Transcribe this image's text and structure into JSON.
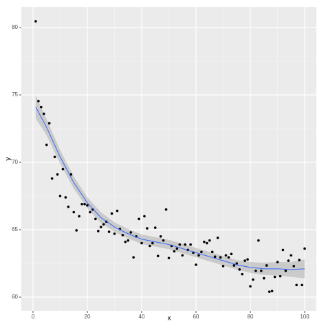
{
  "chart_data": {
    "type": "scatter",
    "x_label": "x",
    "y_label": "y",
    "x": [
      1,
      2,
      3,
      4,
      5,
      6,
      7,
      8,
      9,
      10,
      11,
      12,
      13,
      14,
      15,
      16,
      17,
      18,
      19,
      20,
      21,
      22,
      23,
      24,
      25,
      26,
      27,
      28,
      29,
      30,
      31,
      32,
      33,
      34,
      35,
      36,
      37,
      38,
      39,
      40,
      41,
      42,
      43,
      44,
      45,
      46,
      47,
      48,
      49,
      50,
      51,
      52,
      53,
      54,
      55,
      56,
      57,
      58,
      59,
      60,
      61,
      62,
      63,
      64,
      65,
      66,
      67,
      68,
      69,
      70,
      71,
      72,
      73,
      74,
      75,
      76,
      77,
      78,
      79,
      80,
      81,
      82,
      83,
      84,
      85,
      86,
      87,
      88,
      89,
      90,
      91,
      92,
      93,
      94,
      95,
      96,
      97,
      98,
      99,
      100
    ],
    "values": [
      80.46,
      74.54,
      74.1,
      73.6,
      71.3,
      72.9,
      68.8,
      70.4,
      69.1,
      67.5,
      69.5,
      67.4,
      66.7,
      69.1,
      66.3,
      64.95,
      66.0,
      66.9,
      66.9,
      66.8,
      66.3,
      66.5,
      65.8,
      64.9,
      65.2,
      65.4,
      65.6,
      64.85,
      66.2,
      64.7,
      66.4,
      65.05,
      64.6,
      64.1,
      64.2,
      64.8,
      62.95,
      64.5,
      65.8,
      64.0,
      66.0,
      65.1,
      63.8,
      64.0,
      65.15,
      63.05,
      64.5,
      64.2,
      66.5,
      62.9,
      63.8,
      63.4,
      63.6,
      63.9,
      63.1,
      63.9,
      63.5,
      63.9,
      63.3,
      62.4,
      63.1,
      63.35,
      64.1,
      64.0,
      64.2,
      63.35,
      63.0,
      64.4,
      62.95,
      62.3,
      63.1,
      62.95,
      63.2,
      62.35,
      62.5,
      62.05,
      61.7,
      62.7,
      62.8,
      60.8,
      61.3,
      61.95,
      64.2,
      61.95,
      61.4,
      62.35,
      60.4,
      60.45,
      61.5,
      62.6,
      61.55,
      63.5,
      61.95,
      62.7,
      63.1,
      62.3,
      60.9,
      62.75,
      60.9,
      63.6
    ],
    "color": "#000000",
    "smooth": {
      "color": "#3366ff",
      "band_color": "#999999",
      "x": [
        1,
        5,
        10,
        15,
        20,
        25,
        30,
        35,
        40,
        45,
        50,
        55,
        60,
        65,
        70,
        75,
        80,
        85,
        90,
        95,
        100
      ],
      "values": [
        74.1,
        72.6,
        70.4,
        68.5,
        67.0,
        65.9,
        65.2,
        64.7,
        64.3,
        64.1,
        63.9,
        63.6,
        63.3,
        63.0,
        62.7,
        62.4,
        62.2,
        62.1,
        62.1,
        62.05,
        62.1
      ],
      "lower": [
        73.25,
        72.0,
        69.9,
        68.05,
        66.6,
        65.5,
        64.85,
        64.35,
        63.95,
        63.75,
        63.55,
        63.25,
        62.95,
        62.65,
        62.35,
        62.05,
        61.8,
        61.65,
        61.6,
        61.5,
        61.4
      ],
      "upper": [
        74.95,
        73.2,
        70.9,
        68.95,
        67.4,
        66.3,
        65.55,
        65.05,
        64.65,
        64.45,
        64.25,
        63.95,
        63.65,
        63.35,
        63.05,
        62.75,
        62.6,
        62.55,
        62.6,
        62.6,
        62.8
      ]
    },
    "xlim": [
      -4.3,
      104.3
    ],
    "ylim": [
      58.98,
      81.53
    ],
    "xticks": [
      0,
      20,
      40,
      60,
      80,
      100
    ],
    "yticks": [
      60,
      65,
      70,
      75,
      80
    ],
    "xminor": [
      10,
      30,
      50,
      70,
      90
    ],
    "yminor": [
      62.5,
      67.5,
      72.5,
      77.5
    ],
    "grid": true
  }
}
